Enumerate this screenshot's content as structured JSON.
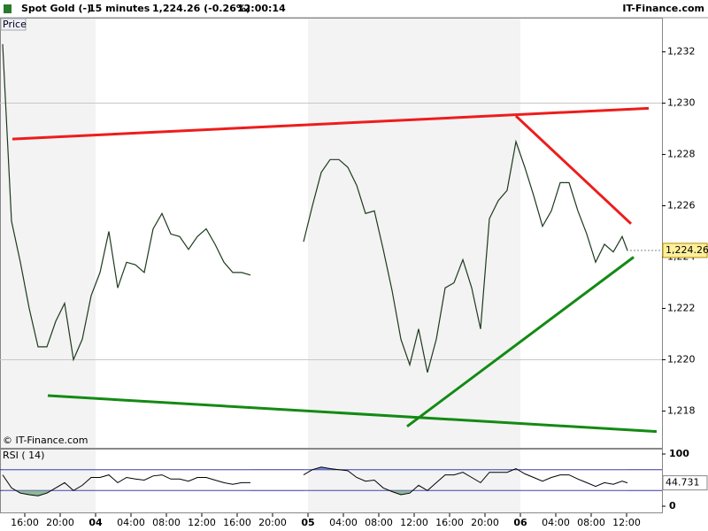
{
  "header": {
    "instrument": "Spot Gold (-)",
    "interval": "15 minutes",
    "quote": "1,224.26 (-0.26%)",
    "time": "12:00:14",
    "brand": "IT-Finance.com"
  },
  "chart_data": {
    "type": "line",
    "panel_label": "Price",
    "copyright": "© IT-Finance.com",
    "xlim": [
      13.2,
      88
    ],
    "xticks": [
      {
        "value": 16,
        "label": "16:00"
      },
      {
        "value": 20,
        "label": "20:00"
      },
      {
        "value": 24,
        "label": "04"
      },
      {
        "value": 28,
        "label": "04:00"
      },
      {
        "value": 32,
        "label": "08:00"
      },
      {
        "value": 36,
        "label": "12:00"
      },
      {
        "value": 40,
        "label": "16:00"
      },
      {
        "value": 44,
        "label": "20:00"
      },
      {
        "value": 48,
        "label": "05"
      },
      {
        "value": 52,
        "label": "04:00"
      },
      {
        "value": 56,
        "label": "08:00"
      },
      {
        "value": 60,
        "label": "12:00"
      },
      {
        "value": 64,
        "label": "16:00"
      },
      {
        "value": 68,
        "label": "20:00"
      },
      {
        "value": 72,
        "label": "06"
      },
      {
        "value": 76,
        "label": "04:00"
      },
      {
        "value": 80,
        "label": "08:00"
      },
      {
        "value": 84,
        "label": "12:00"
      }
    ],
    "ylim": [
      1216.6,
      1233.4
    ],
    "yticks": [
      {
        "value": 1232,
        "label": "1,232"
      },
      {
        "value": 1230,
        "label": "1,230"
      },
      {
        "value": 1228,
        "label": "1,228"
      },
      {
        "value": 1226,
        "label": "1,226"
      },
      {
        "value": 1224,
        "label": "1,224"
      },
      {
        "value": 1222,
        "label": "1,222"
      },
      {
        "value": 1220,
        "label": "1,220"
      },
      {
        "value": 1218,
        "label": "1,218"
      }
    ],
    "x": [
      13.5,
      14.5,
      15.5,
      16.5,
      17.5,
      18.5,
      19.5,
      20.5,
      21.5,
      22.5,
      23.5,
      24.5,
      25.5,
      26.5,
      27.5,
      28.5,
      29.5,
      30.5,
      31.5,
      32.5,
      33.5,
      34.5,
      35.5,
      36.5,
      37.5,
      38.5,
      39.5,
      40.5,
      41.5,
      42.5,
      43.5,
      44.5,
      45.5,
      46.5,
      47.5,
      48.5,
      49.5,
      50.5,
      51.5,
      52.5,
      53.5,
      54.5,
      55.5,
      56.5,
      57.5,
      58.5,
      59.5,
      60.5,
      61.5,
      62.5,
      63.5,
      64.5,
      65.5,
      66.5,
      67.5,
      68.5,
      69.5,
      70.5,
      71.5,
      72.5,
      73.5,
      74.5,
      75.5,
      76.5,
      77.5,
      78.5,
      79.5,
      80.5,
      81.5,
      82.5,
      83.5,
      84.1
    ],
    "series": [
      {
        "name": "Spot Gold",
        "color": "#1e3a1e",
        "values": [
          1232.3,
          1225.4,
          1223.8,
          1222.0,
          1220.5,
          1220.5,
          1221.5,
          1222.2,
          1220.0,
          1220.8,
          1222.5,
          1223.4,
          1225.0,
          1222.8,
          1223.8,
          1223.7,
          1223.4,
          1225.1,
          1225.7,
          1224.9,
          1224.8,
          1224.3,
          1224.8,
          1225.1,
          1224.5,
          1223.8,
          1223.4,
          1223.4,
          1223.3,
          null,
          null,
          null,
          null,
          null,
          1224.6,
          1226.0,
          1227.3,
          1227.8,
          1227.8,
          1227.5,
          1226.8,
          1225.7,
          1225.8,
          1224.3,
          1222.7,
          1220.8,
          1219.8,
          1221.2,
          1219.5,
          1220.8,
          1222.8,
          1223.0,
          1223.9,
          1222.8,
          1221.2,
          1225.5,
          1226.2,
          1226.6,
          1228.5,
          1227.5,
          1226.4,
          1225.2,
          1225.8,
          1226.9,
          1226.9,
          1225.8,
          1224.9,
          1223.8,
          1224.5,
          1224.2,
          1224.8,
          1224.26
        ]
      }
    ],
    "last_price": {
      "value": 1224.26,
      "label": "1,224.26"
    },
    "trendlines": [
      {
        "color": "#ee1c1c",
        "x": [
          14.6,
          86.5
        ],
        "y": [
          1228.6,
          1229.8
        ]
      },
      {
        "color": "#ee1c1c",
        "x": [
          71.5,
          84.5
        ],
        "y": [
          1229.5,
          1225.3
        ]
      },
      {
        "color": "#138a13",
        "x": [
          18.6,
          87.4
        ],
        "y": [
          1218.6,
          1217.2
        ]
      },
      {
        "color": "#138a13",
        "x": [
          59.2,
          84.8
        ],
        "y": [
          1217.4,
          1224.0
        ]
      }
    ],
    "grid_yvalues": [
      1230,
      1220
    ],
    "rsi": {
      "label": "RSI ( 14)",
      "color": "#000000",
      "ylim": [
        -13.6,
        108.5
      ],
      "yticks": [
        0,
        100
      ],
      "levels": [
        30,
        70
      ],
      "values": [
        60,
        35,
        25,
        22,
        20,
        25,
        35,
        45,
        30,
        40,
        55,
        55,
        60,
        45,
        55,
        52,
        50,
        58,
        60,
        52,
        52,
        48,
        55,
        55,
        50,
        45,
        42,
        45,
        45,
        null,
        null,
        null,
        null,
        null,
        60,
        70,
        75,
        72,
        70,
        68,
        55,
        48,
        50,
        35,
        28,
        22,
        25,
        40,
        30,
        45,
        60,
        60,
        65,
        55,
        45,
        65,
        65,
        65,
        72,
        62,
        55,
        48,
        55,
        60,
        60,
        52,
        45,
        38,
        45,
        42,
        48,
        44.731
      ],
      "last": 44.731
    }
  }
}
